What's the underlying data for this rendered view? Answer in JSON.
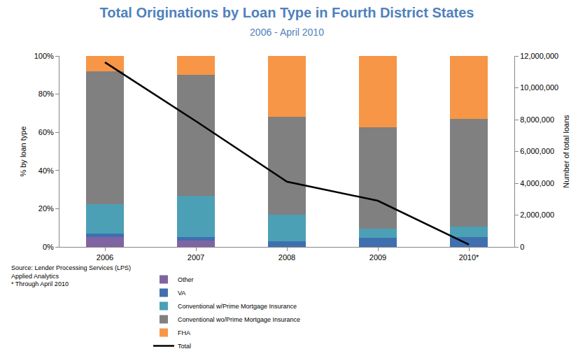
{
  "chart_data": {
    "type": "bar",
    "title": "Total Originations by Loan Type in Fourth District States",
    "subtitle": "2006 - April 2010",
    "ylabel": "% by loan type",
    "y2label": "Number of total loans",
    "categories": [
      "2006",
      "2007",
      "2008",
      "2009",
      "2010*"
    ],
    "stacked": true,
    "grid": false,
    "legend": "bottom",
    "ylim": [
      0,
      100
    ],
    "yticks": [
      {
        "value": 0,
        "label": "0%"
      },
      {
        "value": 20,
        "label": "20%"
      },
      {
        "value": 40,
        "label": "40%"
      },
      {
        "value": 60,
        "label": "60%"
      },
      {
        "value": 80,
        "label": "80%"
      },
      {
        "value": 100,
        "label": "100%"
      }
    ],
    "y2lim": [
      0,
      12000000
    ],
    "y2ticks": [
      0,
      {
        "value": 2000000,
        "label": "2,000,000"
      },
      {
        "value": 4000000,
        "label": "4,000,000"
      },
      {
        "value": 6000000,
        "label": "6,000,000"
      },
      {
        "value": 8000000,
        "label": "8,000,000"
      },
      {
        "value": 10000000,
        "label": "10,000,000"
      },
      {
        "value": 12000000,
        "label": "12,000,000"
      }
    ],
    "series": [
      {
        "name": "Other",
        "type": "bar",
        "color": "#8064a2",
        "values": [
          5,
          3.4,
          0,
          0,
          0
        ]
      },
      {
        "name": "VA",
        "type": "bar",
        "color": "#3f6faf",
        "values": [
          2,
          1.6,
          3,
          4.8,
          5.2
        ]
      },
      {
        "name": "Conventional w/Prime Mortgage Insurance",
        "type": "bar",
        "color": "#4ba0b6",
        "values": [
          15.4,
          21.7,
          14,
          4.6,
          5.3
        ]
      },
      {
        "name": "Conventional wo/Prime Mortgage Insurance",
        "type": "bar",
        "color": "#808080",
        "values": [
          69.6,
          63.3,
          51.2,
          53.1,
          56.5
        ]
      },
      {
        "name": "FHA",
        "type": "bar",
        "color": "#f79646",
        "values": [
          8,
          10,
          31.8,
          37.5,
          33
        ]
      },
      {
        "name": "Total",
        "type": "line",
        "axis": "y2",
        "color": "#000000",
        "values": [
          11600000,
          7900000,
          4100000,
          2900000,
          150000
        ]
      }
    ],
    "annotations": [
      "Source: Lender Processing Services (LPS)",
      "Applied Analytics",
      "* Through April 2010"
    ]
  }
}
